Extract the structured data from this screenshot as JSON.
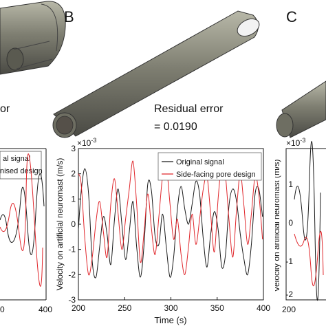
{
  "panels": {
    "b_label": "B",
    "c_label": "C",
    "left_fragment": "or",
    "residual_label": "Residual error",
    "residual_value": "= 0.0190"
  },
  "legend_left_fragments": [
    "al signal",
    "nised design"
  ],
  "left_ticks": [
    "0",
    "400"
  ],
  "right_ticks": [
    "200"
  ],
  "right_ylabel": "Velocity on artificial neuromast (m/s)",
  "right_exponent": "×10",
  "right_exponent_power": "-3",
  "right_yticks": [
    "1",
    "0",
    "-1",
    "-2"
  ],
  "colors": {
    "original": "#1a1a1a",
    "design": "#e0262b",
    "pipe": "#8a8a7a"
  },
  "chart_data": {
    "type": "line",
    "title": "",
    "xlabel": "Time (s)",
    "ylabel": "Velocity on artificial neuromast (m/s)",
    "exponent": "×10",
    "exponent_power": "-3",
    "xlim": [
      200,
      400
    ],
    "ylim": [
      -3,
      3
    ],
    "xticks": [
      200,
      250,
      300,
      350,
      400
    ],
    "yticks": [
      3,
      2,
      1,
      0,
      -1,
      -2,
      -3
    ],
    "legend_placement": "top-right",
    "series": [
      {
        "name": "Original signal",
        "x": [
          200,
          203,
          207,
          211,
          215,
          219,
          223,
          227,
          231,
          235,
          239,
          243,
          247,
          251,
          255,
          259,
          263,
          267,
          271,
          275,
          279,
          283,
          287,
          291,
          295,
          299,
          303,
          307,
          311,
          315,
          319,
          323,
          327,
          331,
          335,
          339,
          343,
          347,
          351,
          355,
          359,
          363,
          367,
          371,
          375,
          379,
          383,
          387,
          391,
          395,
          399
        ],
        "values": [
          -0.2,
          1.3,
          2.2,
          1.2,
          -1.5,
          -2.1,
          -0.9,
          0.3,
          -0.4,
          -1.6,
          0.2,
          1.4,
          0.0,
          -1.4,
          -0.3,
          0.9,
          -0.9,
          -2.1,
          -0.8,
          1.6,
          1.3,
          -0.5,
          -0.8,
          0.4,
          -0.9,
          -2.1,
          -1.3,
          0.6,
          1.5,
          0.6,
          0.0,
          0.8,
          1.7,
          1.2,
          -0.6,
          -1.7,
          -0.4,
          0.5,
          -0.2,
          -1.7,
          -1.2,
          0.8,
          1.4,
          0.9,
          -0.4,
          -1.4,
          -2.0,
          -0.8,
          1.2,
          1.4,
          0.3
        ]
      },
      {
        "name": "Side-facing pore design",
        "x": [
          200,
          203,
          207,
          211,
          215,
          219,
          223,
          227,
          231,
          235,
          239,
          243,
          247,
          251,
          255,
          259,
          263,
          267,
          271,
          275,
          279,
          283,
          287,
          291,
          295,
          299,
          303,
          307,
          311,
          315,
          319,
          323,
          327,
          331,
          335,
          339,
          343,
          347,
          351,
          355,
          359,
          363,
          367,
          371,
          375,
          379,
          383,
          387,
          391,
          395,
          399
        ],
        "values": [
          2.0,
          1.6,
          -0.6,
          -2.0,
          -1.3,
          0.1,
          0.9,
          -0.3,
          -1.3,
          0.8,
          1.8,
          0.4,
          -1.0,
          0.2,
          1.4,
          2.5,
          0.8,
          -1.5,
          -0.3,
          1.2,
          -0.2,
          -1.2,
          0.3,
          1.9,
          2.3,
          0.8,
          -0.6,
          0.2,
          -1.2,
          -2.0,
          -0.9,
          0.4,
          -0.8,
          0.2,
          1.4,
          1.9,
          0.4,
          -1.1,
          1.0,
          2.4,
          1.9,
          0.1,
          -1.3,
          0.6,
          2.0,
          0.7,
          -0.8,
          0.4,
          1.9,
          1.2,
          -0.6
        ]
      }
    ]
  }
}
